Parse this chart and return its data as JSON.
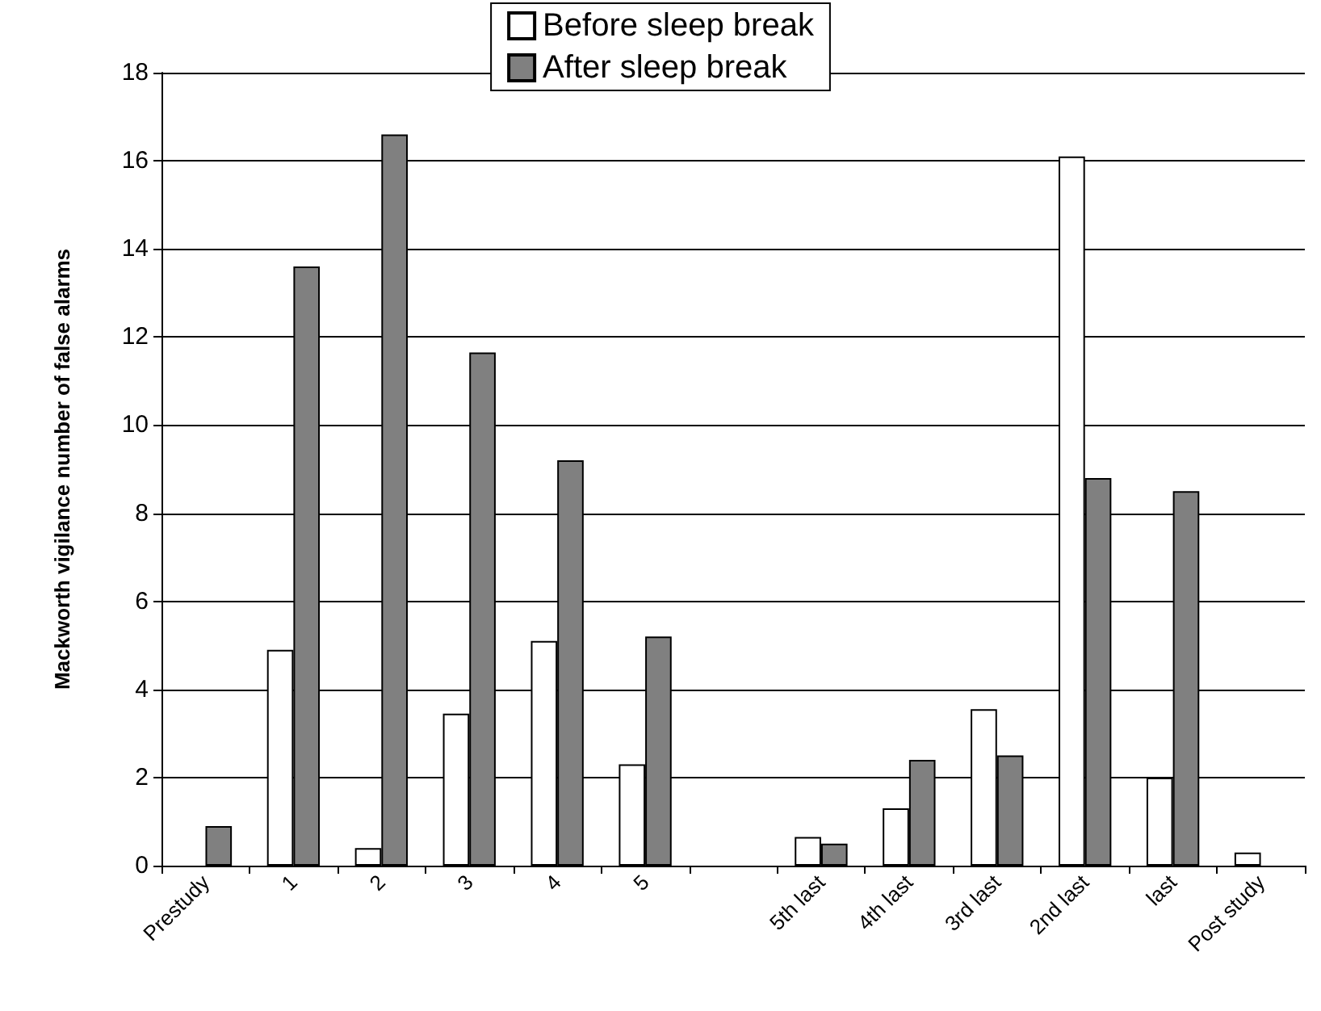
{
  "chart_data": {
    "type": "bar",
    "ylabel": "Mackworth vigilance number of false alarms",
    "categories": [
      "Prestudy",
      "1",
      "2",
      "3",
      "4",
      "5",
      null,
      "5th last",
      "4th last",
      "3rd last",
      "2nd last",
      "last",
      "Post study"
    ],
    "series": [
      {
        "name": "Before sleep break",
        "color": "#ffffff",
        "values": [
          null,
          4.9,
          0.4,
          3.45,
          5.1,
          2.3,
          null,
          0.65,
          1.3,
          3.55,
          16.1,
          2.0,
          0.3
        ]
      },
      {
        "name": "After sleep break",
        "color": "#808080",
        "values": [
          0.9,
          13.6,
          16.6,
          11.65,
          9.2,
          5.2,
          null,
          0.5,
          2.4,
          2.5,
          8.8,
          8.5,
          null
        ]
      }
    ],
    "ylim": [
      0,
      18
    ],
    "yticks": [
      0,
      2,
      4,
      6,
      8,
      10,
      12,
      14,
      16,
      18
    ],
    "grid": "y",
    "legend": "top"
  }
}
